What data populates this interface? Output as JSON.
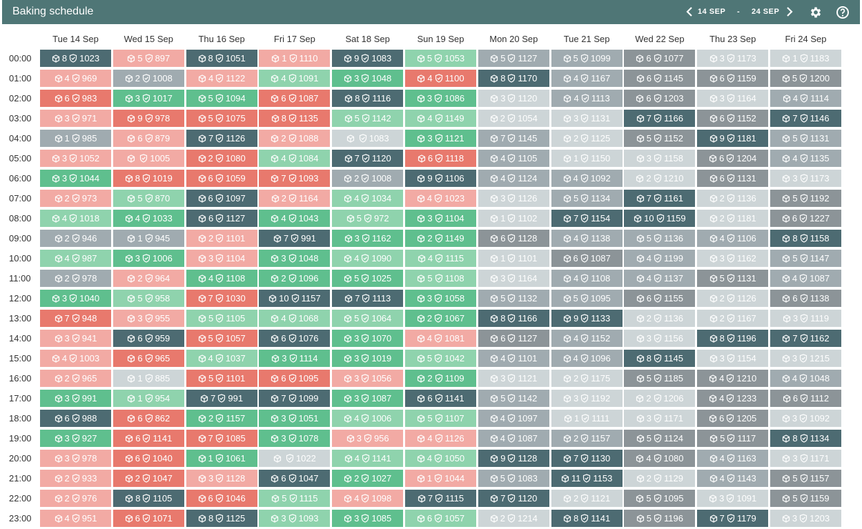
{
  "header": {
    "title": "Baking schedule",
    "date_from": "14 SEP",
    "date_sep": "-",
    "date_to": "24 SEP",
    "icons": {
      "prev": "chevron-left-icon",
      "next": "chevron-right-icon",
      "settings": "gear-icon",
      "help": "help-circle-icon"
    }
  },
  "colors": {
    "header_bg": "#4f7676",
    "red_strong": "#e8796d",
    "red_light": "#f2aaa4",
    "green_strong": "#5fbf8e",
    "green_light": "#8fd3ad",
    "dark": "#4d6b72",
    "gray": "#a0abb0",
    "gray_light": "#cdd5d7",
    "slate": "#8c9498"
  },
  "days": [
    "Tue 14 Sep",
    "Wed 15 Sep",
    "Thu 16 Sep",
    "Fri 17 Sep",
    "Sat 18 Sep",
    "Sun 19 Sep",
    "Mon 20 Sep",
    "Tue 21 Sep",
    "Wed 22 Sep",
    "Thu 23 Sep",
    "Fri 24 Sep"
  ],
  "hours": [
    "00:00",
    "01:00",
    "02:00",
    "03:00",
    "04:00",
    "05:00",
    "06:00",
    "07:00",
    "08:00",
    "09:00",
    "10:00",
    "11:00",
    "12:00",
    "13:00",
    "14:00",
    "15:00",
    "16:00",
    "17:00",
    "18:00",
    "19:00",
    "20:00",
    "21:00",
    "22:00",
    "23:00"
  ],
  "cells": [
    [
      [
        "8",
        "1023",
        "dark"
      ],
      [
        "5",
        "897",
        "redl"
      ],
      [
        "8",
        "1051",
        "dark"
      ],
      [
        "1",
        "1110",
        "redl"
      ],
      [
        "9",
        "1083",
        "dark"
      ],
      [
        "5",
        "1053",
        "grnl"
      ],
      [
        "5",
        "1127",
        "gray"
      ],
      [
        "5",
        "1099",
        "gray"
      ],
      [
        "6",
        "1077",
        "slate"
      ],
      [
        "3",
        "1173",
        "grayl"
      ],
      [
        "1",
        "1183",
        "grayl"
      ]
    ],
    [
      [
        "4",
        "969",
        "redl"
      ],
      [
        "2",
        "1008",
        "gray"
      ],
      [
        "4",
        "1122",
        "redl"
      ],
      [
        "4",
        "1091",
        "grnl"
      ],
      [
        "3",
        "1048",
        "grn"
      ],
      [
        "4",
        "1100",
        "red"
      ],
      [
        "8",
        "1170",
        "dark"
      ],
      [
        "4",
        "1167",
        "gray"
      ],
      [
        "6",
        "1145",
        "slate"
      ],
      [
        "6",
        "1159",
        "slate"
      ],
      [
        "5",
        "1200",
        "slate"
      ]
    ],
    [
      [
        "6",
        "983",
        "red"
      ],
      [
        "3",
        "1017",
        "grn"
      ],
      [
        "5",
        "1094",
        "grn"
      ],
      [
        "6",
        "1087",
        "red"
      ],
      [
        "8",
        "1116",
        "dark"
      ],
      [
        "3",
        "1086",
        "grn"
      ],
      [
        "3",
        "1120",
        "grayl"
      ],
      [
        "4",
        "1113",
        "gray"
      ],
      [
        "6",
        "1203",
        "slate"
      ],
      [
        "3",
        "1164",
        "grayl"
      ],
      [
        "4",
        "1114",
        "gray"
      ]
    ],
    [
      [
        "3",
        "971",
        "redl"
      ],
      [
        "9",
        "978",
        "red"
      ],
      [
        "5",
        "1075",
        "red"
      ],
      [
        "8",
        "1135",
        "red"
      ],
      [
        "5",
        "1142",
        "grnl"
      ],
      [
        "4",
        "1149",
        "grnl"
      ],
      [
        "2",
        "1054",
        "grayl"
      ],
      [
        "3",
        "1131",
        "grayl"
      ],
      [
        "7",
        "1166",
        "dark"
      ],
      [
        "6",
        "1152",
        "slate"
      ],
      [
        "7",
        "1146",
        "dark"
      ]
    ],
    [
      [
        "1",
        "985",
        "gray"
      ],
      [
        "6",
        "879",
        "redl"
      ],
      [
        "7",
        "1126",
        "dark"
      ],
      [
        "2",
        "1088",
        "redl"
      ],
      [
        "",
        "1083",
        "grayl"
      ],
      [
        "3",
        "1121",
        "grn"
      ],
      [
        "7",
        "1145",
        "gray"
      ],
      [
        "2",
        "1125",
        "grayl"
      ],
      [
        "5",
        "1152",
        "slate"
      ],
      [
        "9",
        "1181",
        "dark"
      ],
      [
        "5",
        "1131",
        "gray"
      ]
    ],
    [
      [
        "3",
        "1052",
        "redl"
      ],
      [
        "",
        "1005",
        "redl"
      ],
      [
        "2",
        "1080",
        "red"
      ],
      [
        "4",
        "1084",
        "grnl"
      ],
      [
        "7",
        "1120",
        "dark"
      ],
      [
        "6",
        "1118",
        "red"
      ],
      [
        "4",
        "1105",
        "gray"
      ],
      [
        "1",
        "1150",
        "grayl"
      ],
      [
        "3",
        "1158",
        "grayl"
      ],
      [
        "6",
        "1204",
        "slate"
      ],
      [
        "4",
        "1135",
        "gray"
      ]
    ],
    [
      [
        "3",
        "1044",
        "grn"
      ],
      [
        "8",
        "1019",
        "red"
      ],
      [
        "6",
        "1059",
        "red"
      ],
      [
        "7",
        "1093",
        "red"
      ],
      [
        "2",
        "1008",
        "gray"
      ],
      [
        "9",
        "1106",
        "dark"
      ],
      [
        "4",
        "1124",
        "gray"
      ],
      [
        "4",
        "1092",
        "gray"
      ],
      [
        "2",
        "1210",
        "grayl"
      ],
      [
        "6",
        "1131",
        "slate"
      ],
      [
        "3",
        "1173",
        "grayl"
      ]
    ],
    [
      [
        "2",
        "973",
        "redl"
      ],
      [
        "5",
        "870",
        "grnl"
      ],
      [
        "6",
        "1097",
        "dark"
      ],
      [
        "2",
        "1164",
        "redl"
      ],
      [
        "4",
        "1034",
        "grnl"
      ],
      [
        "4",
        "1023",
        "redl"
      ],
      [
        "3",
        "1126",
        "grayl"
      ],
      [
        "5",
        "1134",
        "gray"
      ],
      [
        "7",
        "1161",
        "dark"
      ],
      [
        "2",
        "1136",
        "grayl"
      ],
      [
        "5",
        "1192",
        "slate"
      ]
    ],
    [
      [
        "4",
        "1018",
        "grnl"
      ],
      [
        "4",
        "1033",
        "grn"
      ],
      [
        "6",
        "1127",
        "dark"
      ],
      [
        "4",
        "1043",
        "grn"
      ],
      [
        "5",
        "972",
        "grnl"
      ],
      [
        "3",
        "1104",
        "grn"
      ],
      [
        "1",
        "1102",
        "grayl"
      ],
      [
        "7",
        "1154",
        "dark"
      ],
      [
        "10",
        "1159",
        "dark"
      ],
      [
        "2",
        "1181",
        "grayl"
      ],
      [
        "6",
        "1227",
        "slate"
      ]
    ],
    [
      [
        "2",
        "946",
        "gray"
      ],
      [
        "1",
        "945",
        "gray"
      ],
      [
        "2",
        "1101",
        "redl"
      ],
      [
        "7",
        "991",
        "dark"
      ],
      [
        "3",
        "1162",
        "grn"
      ],
      [
        "2",
        "1149",
        "grn"
      ],
      [
        "6",
        "1128",
        "slate"
      ],
      [
        "4",
        "1138",
        "gray"
      ],
      [
        "5",
        "1136",
        "gray"
      ],
      [
        "4",
        "1106",
        "gray"
      ],
      [
        "8",
        "1158",
        "dark"
      ]
    ],
    [
      [
        "4",
        "987",
        "grnl"
      ],
      [
        "3",
        "1006",
        "grn"
      ],
      [
        "3",
        "1104",
        "redl"
      ],
      [
        "3",
        "1048",
        "grn"
      ],
      [
        "4",
        "1090",
        "grnl"
      ],
      [
        "4",
        "1115",
        "grnl"
      ],
      [
        "1",
        "1101",
        "grayl"
      ],
      [
        "6",
        "1087",
        "slate"
      ],
      [
        "4",
        "1199",
        "gray"
      ],
      [
        "3",
        "1162",
        "grayl"
      ],
      [
        "5",
        "1147",
        "gray"
      ]
    ],
    [
      [
        "2",
        "978",
        "gray"
      ],
      [
        "2",
        "964",
        "redl"
      ],
      [
        "4",
        "1108",
        "grn"
      ],
      [
        "2",
        "1096",
        "grn"
      ],
      [
        "5",
        "1025",
        "grn"
      ],
      [
        "5",
        "1108",
        "grnl"
      ],
      [
        "3",
        "1164",
        "grayl"
      ],
      [
        "4",
        "1108",
        "gray"
      ],
      [
        "4",
        "1137",
        "gray"
      ],
      [
        "5",
        "1131",
        "slate"
      ],
      [
        "4",
        "1087",
        "gray"
      ]
    ],
    [
      [
        "3",
        "1040",
        "grn"
      ],
      [
        "5",
        "958",
        "grnl"
      ],
      [
        "7",
        "1030",
        "red"
      ],
      [
        "10",
        "1157",
        "dark"
      ],
      [
        "7",
        "1113",
        "dark"
      ],
      [
        "3",
        "1058",
        "grn"
      ],
      [
        "5",
        "1132",
        "gray"
      ],
      [
        "5",
        "1095",
        "gray"
      ],
      [
        "6",
        "1155",
        "slate"
      ],
      [
        "2",
        "1126",
        "grayl"
      ],
      [
        "6",
        "1138",
        "slate"
      ]
    ],
    [
      [
        "7",
        "948",
        "red"
      ],
      [
        "3",
        "955",
        "redl"
      ],
      [
        "5",
        "1105",
        "grnl"
      ],
      [
        "4",
        "1068",
        "grnl"
      ],
      [
        "5",
        "1064",
        "grnl"
      ],
      [
        "2",
        "1067",
        "grn"
      ],
      [
        "8",
        "1166",
        "dark"
      ],
      [
        "9",
        "1133",
        "dark"
      ],
      [
        "2",
        "1136",
        "grayl"
      ],
      [
        "2",
        "1167",
        "grayl"
      ],
      [
        "3",
        "1119",
        "grayl"
      ]
    ],
    [
      [
        "3",
        "941",
        "redl"
      ],
      [
        "6",
        "959",
        "dark"
      ],
      [
        "5",
        "1057",
        "red"
      ],
      [
        "6",
        "1076",
        "dark"
      ],
      [
        "3",
        "1070",
        "grn"
      ],
      [
        "4",
        "1081",
        "redl"
      ],
      [
        "6",
        "1127",
        "slate"
      ],
      [
        "4",
        "1152",
        "gray"
      ],
      [
        "3",
        "1156",
        "grayl"
      ],
      [
        "8",
        "1196",
        "dark"
      ],
      [
        "7",
        "1162",
        "dark"
      ]
    ],
    [
      [
        "4",
        "1003",
        "redl"
      ],
      [
        "6",
        "965",
        "red"
      ],
      [
        "4",
        "1037",
        "grnl"
      ],
      [
        "3",
        "1114",
        "grn"
      ],
      [
        "3",
        "1019",
        "grn"
      ],
      [
        "5",
        "1042",
        "grnl"
      ],
      [
        "4",
        "1101",
        "gray"
      ],
      [
        "4",
        "1096",
        "gray"
      ],
      [
        "8",
        "1145",
        "dark"
      ],
      [
        "3",
        "1154",
        "grayl"
      ],
      [
        "3",
        "1215",
        "grayl"
      ]
    ],
    [
      [
        "2",
        "965",
        "redl"
      ],
      [
        "1",
        "885",
        "grayl"
      ],
      [
        "5",
        "1101",
        "red"
      ],
      [
        "6",
        "1095",
        "red"
      ],
      [
        "3",
        "1056",
        "redl"
      ],
      [
        "2",
        "1109",
        "grn"
      ],
      [
        "3",
        "1121",
        "grayl"
      ],
      [
        "2",
        "1175",
        "grayl"
      ],
      [
        "5",
        "1185",
        "slate"
      ],
      [
        "4",
        "1210",
        "slate"
      ],
      [
        "4",
        "1048",
        "gray"
      ]
    ],
    [
      [
        "3",
        "991",
        "grn"
      ],
      [
        "1",
        "954",
        "grnl"
      ],
      [
        "7",
        "991",
        "dark"
      ],
      [
        "7",
        "1099",
        "dark"
      ],
      [
        "3",
        "1087",
        "grn"
      ],
      [
        "6",
        "1141",
        "dark"
      ],
      [
        "5",
        "1142",
        "gray"
      ],
      [
        "3",
        "1192",
        "grayl"
      ],
      [
        "2",
        "1206",
        "grayl"
      ],
      [
        "4",
        "1233",
        "slate"
      ],
      [
        "6",
        "1112",
        "slate"
      ]
    ],
    [
      [
        "6",
        "988",
        "dark"
      ],
      [
        "6",
        "862",
        "red"
      ],
      [
        "2",
        "1157",
        "grn"
      ],
      [
        "3",
        "1051",
        "grn"
      ],
      [
        "4",
        "1006",
        "grnl"
      ],
      [
        "5",
        "1107",
        "grnl"
      ],
      [
        "4",
        "1097",
        "gray"
      ],
      [
        "1",
        "1111",
        "grayl"
      ],
      [
        "3",
        "1171",
        "grayl"
      ],
      [
        "6",
        "1205",
        "slate"
      ],
      [
        "3",
        "1092",
        "grayl"
      ]
    ],
    [
      [
        "3",
        "927",
        "grn"
      ],
      [
        "6",
        "1141",
        "red"
      ],
      [
        "7",
        "1085",
        "red"
      ],
      [
        "3",
        "1078",
        "grn"
      ],
      [
        "3",
        "956",
        "redl"
      ],
      [
        "4",
        "1126",
        "redl"
      ],
      [
        "4",
        "1087",
        "gray"
      ],
      [
        "2",
        "1157",
        "gray"
      ],
      [
        "5",
        "1124",
        "slate"
      ],
      [
        "5",
        "1117",
        "slate"
      ],
      [
        "8",
        "1134",
        "dark"
      ]
    ],
    [
      [
        "3",
        "978",
        "redl"
      ],
      [
        "6",
        "1040",
        "red"
      ],
      [
        "1",
        "1061",
        "grn"
      ],
      [
        "",
        "1022",
        "grayl"
      ],
      [
        "4",
        "1141",
        "grnl"
      ],
      [
        "4",
        "1050",
        "grnl"
      ],
      [
        "9",
        "1128",
        "dark"
      ],
      [
        "7",
        "1130",
        "dark"
      ],
      [
        "4",
        "1080",
        "slate"
      ],
      [
        "4",
        "1163",
        "gray"
      ],
      [
        "3",
        "1171",
        "grayl"
      ]
    ],
    [
      [
        "2",
        "933",
        "redl"
      ],
      [
        "2",
        "1047",
        "red"
      ],
      [
        "3",
        "1128",
        "redl"
      ],
      [
        "6",
        "1047",
        "dark"
      ],
      [
        "2",
        "1027",
        "grn"
      ],
      [
        "1",
        "1044",
        "redl"
      ],
      [
        "5",
        "1083",
        "gray"
      ],
      [
        "11",
        "1153",
        "dark"
      ],
      [
        "2",
        "1129",
        "grayl"
      ],
      [
        "4",
        "1143",
        "gray"
      ],
      [
        "5",
        "1157",
        "slate"
      ]
    ],
    [
      [
        "2",
        "976",
        "redl"
      ],
      [
        "8",
        "1105",
        "dark"
      ],
      [
        "6",
        "1046",
        "red"
      ],
      [
        "5",
        "1115",
        "grnl"
      ],
      [
        "4",
        "1098",
        "redl"
      ],
      [
        "7",
        "1115",
        "dark"
      ],
      [
        "7",
        "1120",
        "dark"
      ],
      [
        "2",
        "1121",
        "grayl"
      ],
      [
        "5",
        "1095",
        "slate"
      ],
      [
        "3",
        "1091",
        "grayl"
      ],
      [
        "5",
        "1159",
        "slate"
      ]
    ],
    [
      [
        "4",
        "951",
        "redl"
      ],
      [
        "6",
        "1071",
        "red"
      ],
      [
        "8",
        "1125",
        "dark"
      ],
      [
        "3",
        "1093",
        "grnl"
      ],
      [
        "3",
        "1085",
        "grn"
      ],
      [
        "6",
        "1057",
        "grnl"
      ],
      [
        "2",
        "1214",
        "grayl"
      ],
      [
        "8",
        "1141",
        "dark"
      ],
      [
        "5",
        "1196",
        "slate"
      ],
      [
        "7",
        "1179",
        "dark"
      ],
      [
        "3",
        "1203",
        "grayl"
      ]
    ]
  ]
}
